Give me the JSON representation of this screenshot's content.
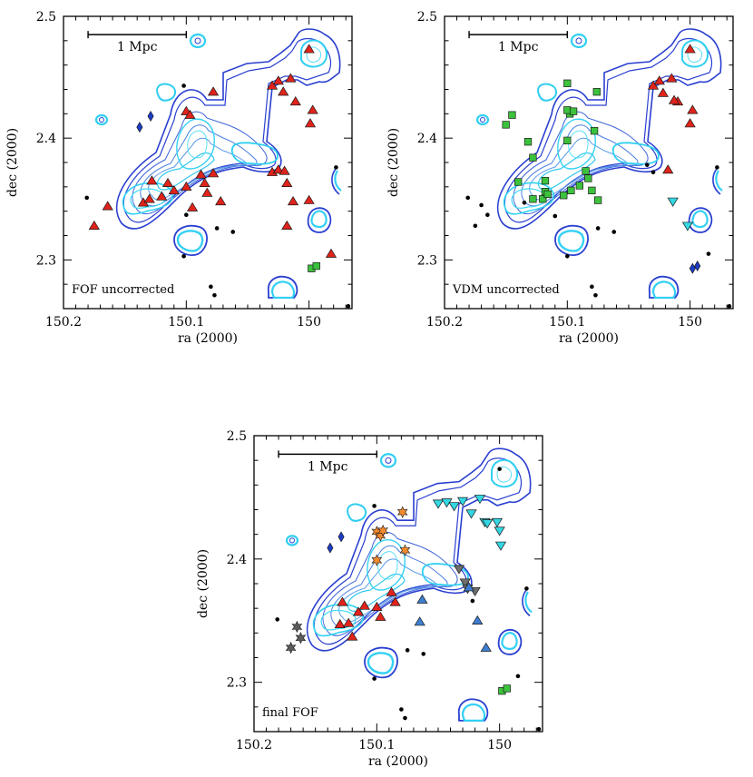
{
  "chart_data": [
    {
      "type": "scatter",
      "title": "",
      "xlabel": "ra (2000)",
      "ylabel": "dec (2000)",
      "xlim": [
        150.2,
        149.965
      ],
      "ylim": [
        2.26,
        2.5
      ],
      "xticks": [
        "150.2",
        "150.1",
        "150"
      ],
      "xtick_values": [
        150.2,
        150.1,
        150.0
      ],
      "yticks": [
        "2.5",
        "2.4",
        "2.3"
      ],
      "ytick_values": [
        2.5,
        2.4,
        2.3
      ],
      "annotation": "FOF uncorrected",
      "scale_bar": {
        "label": "1 Mpc",
        "ra_start": 150.18,
        "ra_end": 150.1,
        "dec": 2.485
      },
      "series": [
        {
          "marker": "black-dot",
          "color": "#000000",
          "points": [
            [
              150.102,
              2.443
            ],
            [
              150.181,
              2.351
            ],
            [
              150.075,
              2.326
            ],
            [
              150.062,
              2.323
            ],
            [
              150.102,
              2.303
            ],
            [
              150.08,
              2.278
            ],
            [
              150.077,
              2.271
            ],
            [
              149.978,
              2.376
            ],
            [
              149.968,
              2.262
            ],
            [
              150.1,
              2.337
            ]
          ]
        },
        {
          "marker": "red-triangle",
          "color": "#e0231b",
          "points": [
            [
              150.175,
              2.328
            ],
            [
              150.164,
              2.344
            ],
            [
              150.135,
              2.347
            ],
            [
              150.128,
              2.365
            ],
            [
              150.13,
              2.35
            ],
            [
              150.12,
              2.352
            ],
            [
              150.11,
              2.357
            ],
            [
              150.115,
              2.363
            ],
            [
              150.1,
              2.36
            ],
            [
              150.095,
              2.343
            ],
            [
              150.088,
              2.37
            ],
            [
              150.085,
              2.363
            ],
            [
              150.078,
              2.371
            ],
            [
              150.072,
              2.348
            ],
            [
              150.083,
              2.355
            ],
            [
              150.1,
              2.422
            ],
            [
              150.097,
              2.419
            ],
            [
              150.078,
              2.438
            ],
            [
              150.03,
              2.372
            ],
            [
              150.025,
              2.374
            ],
            [
              150.02,
              2.373
            ],
            [
              150.018,
              2.363
            ],
            [
              150.013,
              2.348
            ],
            [
              150.018,
              2.328
            ],
            [
              150.0,
              2.349
            ],
            [
              150.03,
              2.443
            ],
            [
              150.025,
              2.447
            ],
            [
              150.021,
              2.438
            ],
            [
              150.015,
              2.449
            ],
            [
              150.011,
              2.43
            ],
            [
              150.0,
              2.473
            ],
            [
              149.997,
              2.423
            ],
            [
              149.999,
              2.412
            ],
            [
              149.982,
              2.305
            ]
          ]
        },
        {
          "marker": "blue-diamond",
          "color": "#1c3cc2",
          "points": [
            [
              150.138,
              2.409
            ],
            [
              150.129,
              2.418
            ]
          ]
        },
        {
          "marker": "green-square",
          "color": "#3cc23c",
          "points": [
            [
              149.998,
              2.293
            ],
            [
              149.994,
              2.295
            ]
          ]
        }
      ]
    },
    {
      "type": "scatter",
      "title": "",
      "xlabel": "ra (2000)",
      "ylabel": "dec (2000)",
      "xlim": [
        150.2,
        149.965
      ],
      "ylim": [
        2.26,
        2.5
      ],
      "xticks": [
        "150.2",
        "150.1",
        "150"
      ],
      "xtick_values": [
        150.2,
        150.1,
        150.0
      ],
      "yticks": [
        "2.5",
        "2.4",
        "2.3"
      ],
      "ytick_values": [
        2.5,
        2.4,
        2.3
      ],
      "annotation": "VDM uncorrected",
      "scale_bar": {
        "label": "1 Mpc",
        "ra_start": 150.18,
        "ra_end": 150.1,
        "dec": 2.485
      },
      "series": [
        {
          "marker": "black-dot",
          "color": "#000000",
          "points": [
            [
              150.181,
              2.351
            ],
            [
              150.17,
              2.345
            ],
            [
              150.175,
              2.328
            ],
            [
              150.165,
              2.337
            ],
            [
              150.135,
              2.347
            ],
            [
              150.11,
              2.336
            ],
            [
              150.075,
              2.326
            ],
            [
              150.062,
              2.323
            ],
            [
              150.1,
              2.303
            ],
            [
              150.08,
              2.278
            ],
            [
              150.077,
              2.271
            ],
            [
              150.035,
              2.378
            ],
            [
              150.03,
              2.372
            ],
            [
              149.978,
              2.376
            ],
            [
              149.968,
              2.262
            ],
            [
              149.985,
              2.305
            ]
          ]
        },
        {
          "marker": "green-square",
          "color": "#3cc23c",
          "points": [
            [
              150.15,
              2.411
            ],
            [
              150.145,
              2.419
            ],
            [
              150.132,
              2.397
            ],
            [
              150.128,
              2.384
            ],
            [
              150.14,
              2.364
            ],
            [
              150.128,
              2.35
            ],
            [
              150.12,
              2.35
            ],
            [
              150.118,
              2.356
            ],
            [
              150.116,
              2.354
            ],
            [
              150.118,
              2.365
            ],
            [
              150.103,
              2.353
            ],
            [
              150.097,
              2.357
            ],
            [
              150.09,
              2.361
            ],
            [
              150.085,
              2.373
            ],
            [
              150.083,
              2.367
            ],
            [
              150.08,
              2.357
            ],
            [
              150.098,
              2.42
            ],
            [
              150.1,
              2.423
            ],
            [
              150.1,
              2.398
            ],
            [
              150.078,
              2.406
            ],
            [
              150.076,
              2.438
            ],
            [
              150.1,
              2.445
            ],
            [
              150.075,
              2.349
            ],
            [
              150.095,
              2.422
            ]
          ]
        },
        {
          "marker": "red-triangle",
          "color": "#e0231b",
          "points": [
            [
              150.03,
              2.443
            ],
            [
              150.025,
              2.447
            ],
            [
              150.022,
              2.437
            ],
            [
              150.015,
              2.449
            ],
            [
              150.01,
              2.43
            ],
            [
              150.0,
              2.473
            ],
            [
              149.998,
              2.423
            ],
            [
              150.0,
              2.412
            ],
            [
              150.013,
              2.431
            ],
            [
              150.018,
              2.374
            ]
          ]
        },
        {
          "marker": "cyan-triangle-down",
          "color": "#33d8e3",
          "points": [
            [
              150.014,
              2.348
            ],
            [
              150.002,
              2.328
            ]
          ]
        },
        {
          "marker": "blue-diamond",
          "color": "#1c3cc2",
          "points": [
            [
              149.998,
              2.293
            ],
            [
              149.994,
              2.295
            ]
          ]
        }
      ]
    },
    {
      "type": "scatter",
      "title": "",
      "xlabel": "ra (2000)",
      "ylabel": "dec (2000)",
      "xlim": [
        150.2,
        149.965
      ],
      "ylim": [
        2.26,
        2.5
      ],
      "xticks": [
        "150.2",
        "150.1",
        "150"
      ],
      "xtick_values": [
        150.2,
        150.1,
        150.0
      ],
      "yticks": [
        "2.5",
        "2.4",
        "2.3"
      ],
      "ytick_values": [
        2.5,
        2.4,
        2.3
      ],
      "annotation": "final FOF",
      "scale_bar": {
        "label": "1 Mpc",
        "ra_start": 150.18,
        "ra_end": 150.1,
        "dec": 2.485
      },
      "series": [
        {
          "marker": "black-dot",
          "color": "#000000",
          "points": [
            [
              150.181,
              2.351
            ],
            [
              150.102,
              2.443
            ],
            [
              150.102,
              2.303
            ],
            [
              150.075,
              2.326
            ],
            [
              150.062,
              2.323
            ],
            [
              150.08,
              2.278
            ],
            [
              150.077,
              2.271
            ],
            [
              150.0,
              2.473
            ],
            [
              150.022,
              2.366
            ],
            [
              149.978,
              2.376
            ],
            [
              149.968,
              2.262
            ],
            [
              149.985,
              2.305
            ]
          ]
        },
        {
          "marker": "red-triangle",
          "color": "#e0231b",
          "points": [
            [
              150.13,
              2.347
            ],
            [
              150.123,
              2.348
            ],
            [
              150.128,
              2.365
            ],
            [
              150.115,
              2.357
            ],
            [
              150.11,
              2.362
            ],
            [
              150.1,
              2.361
            ],
            [
              150.097,
              2.353
            ],
            [
              150.088,
              2.373
            ],
            [
              150.085,
              2.365
            ],
            [
              150.12,
              2.337
            ]
          ]
        },
        {
          "marker": "orange-star",
          "color": "#f28a2e",
          "points": [
            [
              150.1,
              2.422
            ],
            [
              150.097,
              2.419
            ],
            [
              150.1,
              2.399
            ],
            [
              150.077,
              2.407
            ],
            [
              150.079,
              2.438
            ],
            [
              150.095,
              2.423
            ]
          ]
        },
        {
          "marker": "cyan-triangle-down",
          "color": "#33d8e3",
          "points": [
            [
              150.05,
              2.445
            ],
            [
              150.043,
              2.446
            ],
            [
              150.037,
              2.443
            ],
            [
              150.03,
              2.447
            ],
            [
              150.023,
              2.437
            ],
            [
              150.016,
              2.449
            ],
            [
              150.012,
              2.43
            ],
            [
              150.0,
              2.423
            ],
            [
              149.999,
              2.411
            ],
            [
              150.01,
              2.429
            ],
            [
              150.002,
              2.43
            ]
          ]
        },
        {
          "marker": "gray-triangle-down",
          "color": "#6e6e6e",
          "points": [
            [
              150.033,
              2.392
            ],
            [
              150.028,
              2.381
            ],
            [
              150.026,
              2.376
            ],
            [
              150.02,
              2.374
            ]
          ]
        },
        {
          "marker": "steelblue-triangle",
          "color": "#3f7fd0",
          "points": [
            [
              150.063,
              2.367
            ],
            [
              150.065,
              2.349
            ],
            [
              150.018,
              2.35
            ],
            [
              150.025,
              2.377
            ],
            [
              150.011,
              2.328
            ]
          ]
        },
        {
          "marker": "gray-star",
          "color": "#5c5c5c",
          "points": [
            [
              150.165,
              2.345
            ],
            [
              150.17,
              2.328
            ],
            [
              150.162,
              2.336
            ]
          ]
        },
        {
          "marker": "blue-diamond",
          "color": "#1c3cc2",
          "points": [
            [
              150.138,
              2.409
            ],
            [
              150.129,
              2.418
            ]
          ]
        },
        {
          "marker": "green-square",
          "color": "#3cc23c",
          "points": [
            [
              149.998,
              2.293
            ],
            [
              149.994,
              2.295
            ]
          ]
        }
      ]
    }
  ]
}
